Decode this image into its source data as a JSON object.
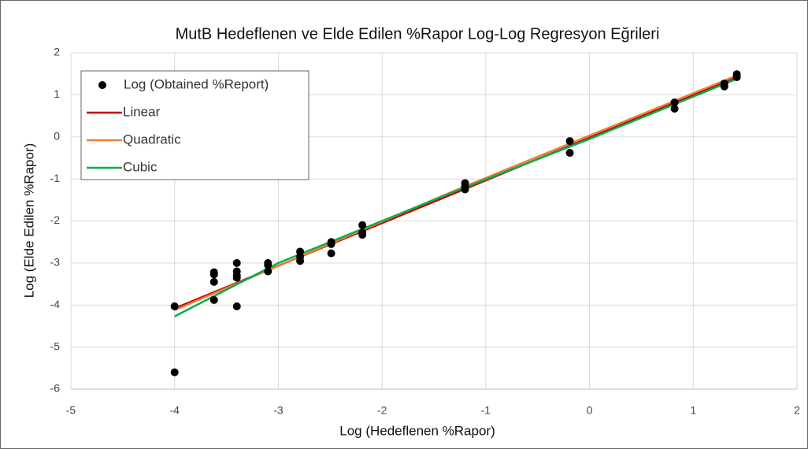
{
  "chart_data": {
    "type": "scatter",
    "title": "MutB Hedeflenen ve Elde Edilen %Rapor Log-Log Regresyon Eğrileri",
    "x_label": "Log (Hedeflenen %Rapor)",
    "y_label": "Log (Elde Edilen %Rapor)",
    "xlim": [
      -5,
      2
    ],
    "ylim": [
      -6,
      2
    ],
    "xticks": [
      -5,
      -4,
      -3,
      -2,
      -1,
      0,
      1,
      2
    ],
    "yticks": [
      -6,
      -5,
      -4,
      -3,
      -2,
      -1,
      0,
      1,
      2
    ],
    "grid": true,
    "legend": "upper left",
    "series": [
      {
        "name": "Log (Obtained %Report)",
        "color": "#000000",
        "mode": "markers",
        "x": [
          -4,
          -4,
          -3.62,
          -3.62,
          -3.62,
          -3.62,
          -3.4,
          -3.4,
          -3.4,
          -3.4,
          -3.4,
          -3.1,
          -3.1,
          -3.1,
          -2.79,
          -2.79,
          -2.79,
          -2.49,
          -2.49,
          -2.49,
          -2.19,
          -2.19,
          -2.19,
          -1.2,
          -1.2,
          -1.2,
          -0.19,
          -0.19,
          0.82,
          0.82,
          1.3,
          1.3,
          1.42,
          1.42
        ],
        "values": [
          -4.03,
          -5.6,
          -3.22,
          -3.27,
          -3.45,
          -3.88,
          -3.0,
          -3.2,
          -3.3,
          -3.35,
          -4.03,
          -3.0,
          -3.05,
          -3.2,
          -2.73,
          -2.85,
          -2.95,
          -2.5,
          -2.55,
          -2.77,
          -2.1,
          -2.28,
          -2.33,
          -1.1,
          -1.18,
          -1.25,
          -0.1,
          -0.38,
          0.82,
          0.67,
          1.27,
          1.2,
          1.49,
          1.42
        ]
      },
      {
        "name": "Linear",
        "color": "#c00000",
        "mode": "lines",
        "x": [
          -4,
          1.42
        ],
        "values": [
          -4.08,
          1.42
        ]
      },
      {
        "name": "Quadratic",
        "color": "#ed7d31",
        "mode": "lines",
        "x": [
          -4,
          -1.3,
          1.42
        ],
        "values": [
          -4.12,
          -1.28,
          1.46
        ]
      },
      {
        "name": "Cubic",
        "color": "#00b050",
        "mode": "lines",
        "x": [
          -4,
          -3,
          -1.3,
          0,
          1.42
        ],
        "values": [
          -4.27,
          -3.0,
          -1.3,
          -0.05,
          1.38
        ]
      }
    ]
  }
}
